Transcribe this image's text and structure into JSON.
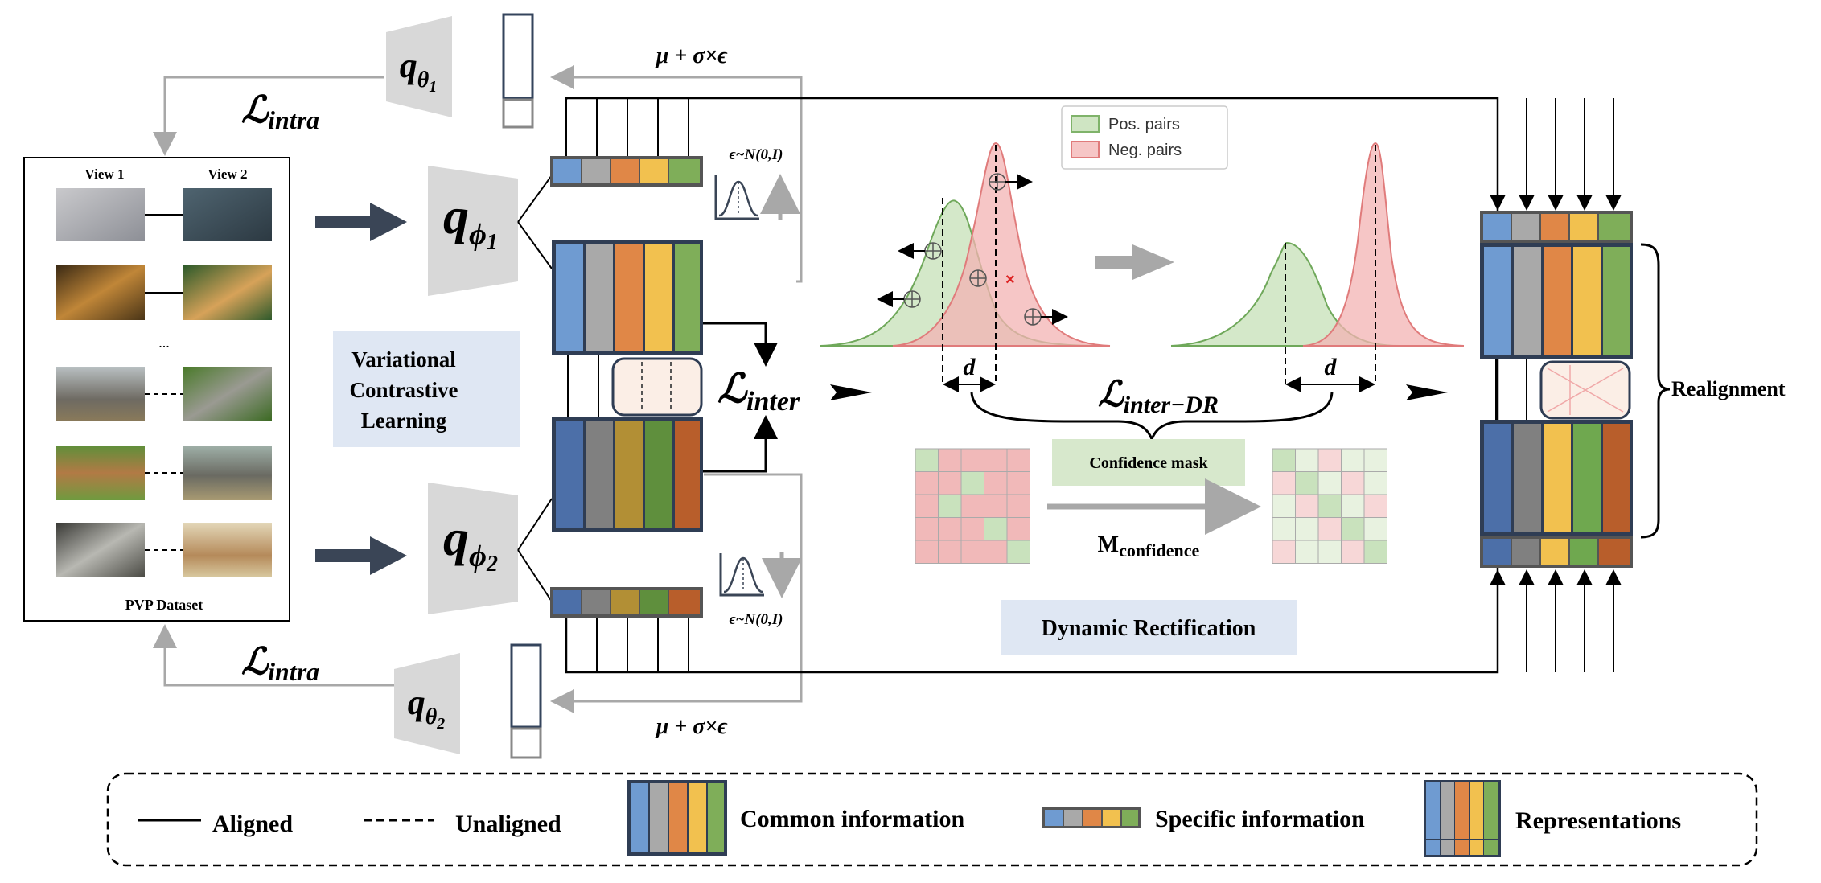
{
  "dataset": {
    "view1_label": "View 1",
    "view2_label": "View 2",
    "ellipsis": "...",
    "caption": "PVP Dataset",
    "rows": [
      {
        "left": "cat",
        "right": "cat",
        "aligned": true
      },
      {
        "left": "dog",
        "right": "dog",
        "aligned": true
      },
      {
        "left": "elephant",
        "right": "koala",
        "aligned": false
      },
      {
        "left": "kangaroo",
        "right": "elephant",
        "aligned": false
      },
      {
        "left": "koala",
        "right": "kangaroo",
        "aligned": false
      }
    ]
  },
  "encoders": {
    "q_theta": "q",
    "theta1_sub": "θ",
    "theta1_idx": "1",
    "theta2_idx": "2",
    "q_phi": "q",
    "phi_sub": "ϕ",
    "phi1_idx": "1",
    "phi2_idx": "2"
  },
  "losses": {
    "script_l": "ℒ",
    "intra_top": "intra",
    "intra_bottom": "intra",
    "inter": "inter",
    "inter_dr": "inter−DR"
  },
  "reparam": {
    "top": "μ + σ×ϵ",
    "bottom": "μ + σ×ϵ",
    "noise_top": "ϵ~N(0,I)",
    "noise_bottom": "ϵ~N(0,I)"
  },
  "vcl_label": [
    "Variational",
    "Contrastive",
    "Learning"
  ],
  "distributions": {
    "legend_pos": "Pos. pairs",
    "legend_neg": "Neg. pairs",
    "distance_label_1": "d",
    "distance_label_2": "d",
    "pos_color": "#8fc47f",
    "neg_color": "#ec8f8f"
  },
  "rectification": {
    "confidence_mask": "Confidence mask",
    "m_main": "M",
    "m_sub": "confidence",
    "title": "Dynamic Rectification"
  },
  "realignment_label": "Realignment",
  "legend": {
    "aligned": "Aligned",
    "unaligned": "Unaligned",
    "common": "Common information",
    "specific": "Specific information",
    "representations": "Representations"
  },
  "colors": {
    "view1": [
      "#6f9bd1",
      "#a9a9a9",
      "#e08747",
      "#f2c14f",
      "#7fae59"
    ],
    "view2": [
      "#4c6fa8",
      "#808080",
      "#b28f35",
      "#5f8f3d",
      "#b85e2b"
    ],
    "realigned_bottom": [
      "#4c6fa8",
      "#808080",
      "#f2c14f",
      "#6fa84f",
      "#b85e2b"
    ],
    "label_bg": "#dfe7f3",
    "mask_bg": "#d7e8cc"
  }
}
